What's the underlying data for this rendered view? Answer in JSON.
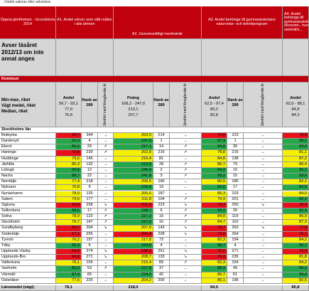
{
  "note": ". Värdet saknas eller sekretess",
  "headers": {
    "c0": "Öppna jämförelser - Grundskola 2014",
    "c1": "A1. Andel elever som nått målen i alla ämnen",
    "c2": "A2. Genomsnittligt meritvärde",
    "c3": "A3. Andel behöriga till gymnasieskolans naturvetar- och teknikprogram",
    "c4": "A4. Andel behöriga till gymnasieskolans ekonomi-, hum. samhälls..."
  },
  "subtitle": "Avser läsåret 2012/13 om inte annat anges",
  "kommun_label": "Kommun",
  "stats": {
    "labels": [
      "Min-max, riket",
      "Vägt medel, riket",
      "Median, riket"
    ],
    "a1": {
      "head": "Andel",
      "values": [
        "56,7 - 93,1",
        "77,0",
        "76,8"
      ],
      "rank_head": "Rank av",
      "rank_n": "289",
      "trend": "Jämfört med föregående år"
    },
    "a2": {
      "head": "Poäng",
      "values": [
        "168,2 - 247,0",
        "213,1",
        "207,7"
      ],
      "rank_head": "Rank av",
      "rank_n": "289",
      "trend": "Jämfört med föregående år"
    },
    "a3": {
      "head": "Andel",
      "values": [
        "62,5 - 97,4",
        "83,2",
        "82,8"
      ],
      "rank_head": "Rank av",
      "rank_n": "289",
      "trend": "Jämfört med föregående år"
    },
    "a4": {
      "head": "Andel",
      "values": [
        "62,0 - 98,1",
        "84,8",
        "84,3"
      ]
    }
  },
  "region_label": "Stockholms län",
  "rows": [
    {
      "name": "Botkyrka",
      "a1": "66,7",
      "a1c": "red",
      "r1": "244",
      "t1": "→",
      "a2": "203,0",
      "a2c": "yel",
      "r2": "214",
      "t2": "→",
      "a3": "76,6",
      "a3c": "red",
      "r3": "223",
      "t3": "→",
      "a4": "78,0",
      "a4c": "red"
    },
    {
      "name": "Danderyd",
      "a1": "92,4",
      "a1c": "grn",
      "r1": "4",
      "t1": "→",
      "a2": "247,0",
      "a2c": "grn",
      "r2": "1",
      "t2": "→",
      "a3": "97,4",
      "a3c": "grn",
      "r3": "1",
      "t3": "→",
      "a4": "98,1",
      "a4c": "grn"
    },
    {
      "name": "Ekerö",
      "a1": "86,6",
      "a1c": "grn",
      "r1": "29",
      "t1": "↗",
      "a2": "227,1",
      "a2c": "grn",
      "r2": "14",
      "t2": "↗",
      "a3": "90,8",
      "a3c": "grn",
      "r3": "30",
      "t3": "→",
      "a4": "93,4",
      "a4c": "grn"
    },
    {
      "name": "Haninge",
      "a1": "70,8",
      "a1c": "red",
      "r1": "239",
      "t1": "↗",
      "a2": "202,8",
      "a2c": "yel",
      "r2": "216",
      "t2": "↗",
      "a3": "78,8",
      "a3c": "yel",
      "r3": "216",
      "t3": "→",
      "a4": "81,1",
      "a4c": "yel"
    },
    {
      "name": "Huddinge",
      "a1": "79,6",
      "a1c": "yel",
      "r1": "145",
      "t1": "→",
      "a2": "216,4",
      "a2c": "yel",
      "r2": "81",
      "t2": "→",
      "a3": "84,8",
      "a3c": "yel",
      "r3": "138",
      "t3": "→",
      "a4": "87,2",
      "a4c": "yel"
    },
    {
      "name": "Järfälla",
      "a1": "80,3",
      "a1c": "yel",
      "r1": "132",
      "t1": "→",
      "a2": "223,8",
      "a2c": "grn",
      "r2": "28",
      "t2": "↗",
      "a3": "86,7",
      "a3c": "yel",
      "r3": "79",
      "t3": "→",
      "a4": "86,4",
      "a4c": "yel"
    },
    {
      "name": "Lidingö",
      "a1": "90,6",
      "a1c": "grn",
      "r1": "12",
      "t1": "→",
      "a2": "246,9",
      "a2c": "grn",
      "r2": "2",
      "t2": "↗",
      "a3": "94,2",
      "a3c": "grn",
      "r3": "10",
      "t3": "→",
      "a4": "95,1",
      "a4c": "grn"
    },
    {
      "name": "Nacka",
      "a1": "88,7",
      "a1c": "grn",
      "r1": "22",
      "t1": "→",
      "a2": "241,8",
      "a2c": "grn",
      "r2": "3",
      "t2": "↗",
      "a3": "93,2",
      "a3c": "grn",
      "r3": "15",
      "t3": "→",
      "a4": "93,6",
      "a4c": "grn"
    },
    {
      "name": "Norrtälje",
      "a1": "77,4",
      "a1c": "yel",
      "r1": "218",
      "t1": "→",
      "a2": "206,5",
      "a2c": "yel",
      "r2": "166",
      "t2": "→",
      "a3": "80,5",
      "a3c": "yel",
      "r3": "185",
      "t3": "→",
      "a4": "82,2",
      "a4c": "yel"
    },
    {
      "name": "Nykvarn",
      "a1": "76,8",
      "a1c": "yel",
      "r1": "9",
      "t1": "→",
      "a2": "226,8",
      "a2c": "grn",
      "r2": "19",
      "t2": "→",
      "a3": "92,6",
      "a3c": "grn",
      "r3": "17",
      "t3": "→",
      "a4": "92,6",
      "a4c": "grn"
    },
    {
      "name": "Nynäshamn",
      "a1": "78,0",
      "a1c": "yel",
      "r1": "125",
      "t1": "→",
      "a2": "205,6",
      "a2c": "yel",
      "r2": "187",
      "t2": "→",
      "a3": "85,3",
      "a3c": "yel",
      "r3": "103",
      "t3": "→",
      "a4": "84,0",
      "a4c": "yel"
    },
    {
      "name": "Salem",
      "a1": "74,6",
      "a1c": "yel",
      "r1": "177",
      "t1": "→",
      "a2": "211,8",
      "a2c": "yel",
      "r2": "104",
      "t2": "↗",
      "a3": "79,9",
      "a3c": "yel",
      "r3": "201",
      "t3": "→",
      "a4": "90,2",
      "a4c": "grn"
    },
    {
      "name": "Sigtuna",
      "a1": "64,0",
      "a1c": "red",
      "r1": "258",
      "t1": "↘",
      "a2": "201,9",
      "a2c": "red",
      "r2": "223",
      "t2": "↘",
      "a3": "72,7",
      "a3c": "red",
      "r3": "250",
      "t3": "↘",
      "a4": "76,4",
      "a4c": "red"
    },
    {
      "name": "Sollentuna",
      "a1": "88,5",
      "a1c": "grn",
      "r1": "17",
      "t1": "↗",
      "a2": "238,7",
      "a2c": "grn",
      "r2": "6",
      "t2": "↗",
      "a3": "92,2",
      "a3c": "grn",
      "r3": "20",
      "t3": "→",
      "a4": "92,4",
      "a4c": "grn"
    },
    {
      "name": "Solna",
      "a1": "78,9",
      "a1c": "yel",
      "r1": "123",
      "t1": "↗",
      "a2": "227,2",
      "a2c": "grn",
      "r2": "16",
      "t2": "↗",
      "a3": "84,8",
      "a3c": "yel",
      "r3": "119",
      "t3": "→",
      "a4": "86,9",
      "a4c": "yel"
    },
    {
      "name": "Stockholm",
      "a1": "76,7",
      "a1c": "yel",
      "r1": "147",
      "t1": "↗",
      "a2": "227,0",
      "a2c": "grn",
      "r2": "16",
      "t2": "↗",
      "a3": "84,7",
      "a3c": "yel",
      "r3": "110",
      "t3": "→",
      "a4": "87,3",
      "a4c": "yel"
    },
    {
      "name": "Sundbyberg",
      "a1": "66,7",
      "a1c": "red",
      "r1": "264",
      "t1": "↘",
      "a2": "207,8",
      "a2c": "yel",
      "r2": "143",
      "t2": "↘",
      "a3": "75,7",
      "a3c": "red",
      "r3": "263",
      "t3": "↘",
      "a4": "77,6",
      "a4c": "red"
    },
    {
      "name": "Södertälje",
      "a1": "67,1",
      "a1c": "red",
      "r1": "255",
      "t1": "→",
      "a2": "200,4",
      "a2c": "red",
      "r2": "228",
      "t2": "↘",
      "a3": "72,6",
      "a3c": "red",
      "r3": "264",
      "t3": "→",
      "a4": "75,1",
      "a4c": "red"
    },
    {
      "name": "Tyresö",
      "a1": "76,2",
      "a1c": "yel",
      "r1": "157",
      "t1": "→",
      "a2": "217,8",
      "a2c": "yel",
      "r2": "73",
      "t2": "→",
      "a3": "82,3",
      "a3c": "yel",
      "r3": "154",
      "t3": "→",
      "a4": "84,2",
      "a4c": "yel"
    },
    {
      "name": "Täby",
      "a1": "92,4",
      "a1c": "grn",
      "r1": "5",
      "t1": "→",
      "a2": "244,8",
      "a2c": "grn",
      "r2": "4",
      "t2": "→",
      "a3": "96,7",
      "a3c": "grn",
      "r3": "4",
      "t3": "→",
      "a4": "96,7",
      "a4c": "grn"
    },
    {
      "name": "Upplands Väsby",
      "a1": "69,0",
      "a1c": "red",
      "r1": "274",
      "t1": "↘",
      "a2": "198,0",
      "a2c": "red",
      "r2": "251",
      "t2": "↘",
      "a3": "72,6",
      "a3c": "red",
      "r3": "271",
      "t3": "→",
      "a4": "73,0",
      "a4c": "red"
    },
    {
      "name": "Upplands-Bro",
      "a1": "66,8",
      "a1c": "red",
      "r1": "271",
      "t1": "↘",
      "a2": "208,7",
      "a2c": "yel",
      "r2": "133",
      "t2": "↘",
      "a3": "76,0",
      "a3c": "red",
      "r3": "235",
      "t3": "→",
      "a4": "81,8",
      "a4c": "yel"
    },
    {
      "name": "Vallentuna",
      "a1": "78,1",
      "a1c": "yel",
      "r1": "159",
      "t1": "→",
      "a2": "215,4",
      "a2c": "yel",
      "r2": "89",
      "t2": "↗",
      "a3": "82,3",
      "a3c": "yel",
      "r3": "154",
      "t3": "→",
      "a4": "84,2",
      "a4c": "yel"
    },
    {
      "name": "Vaxholm",
      "a1": "83,3",
      "a1c": "grn",
      "r1": "53",
      "t1": "↗",
      "a2": "227,8",
      "a2c": "grn",
      "r2": "37",
      "t2": "→",
      "a3": "88,9",
      "a3c": "grn",
      "r3": "49",
      "t3": "→",
      "a4": "89,2",
      "a4c": "grn"
    },
    {
      "name": "Värmdö",
      "a1": "87,4",
      "a1c": "grn",
      "r1": "65",
      "t1": "→",
      "a2": "224,0",
      "a2c": "grn",
      "r2": "42",
      "t2": "→",
      "a3": "86,7",
      "a3c": "yel",
      "r3": "61",
      "t3": "→",
      "a4": "94,4",
      "a4c": "grn"
    },
    {
      "name": "Österåker",
      "a1": "77,6",
      "a1c": "yel",
      "r1": "225",
      "t1": "→",
      "a2": "204,2",
      "a2c": "yel",
      "r2": "200",
      "t2": "→",
      "a3": "80,1",
      "a3c": "yel",
      "r3": "196",
      "t3": "→",
      "a4": "82,5",
      "a4c": "yel"
    }
  ],
  "footer": {
    "label": "Länsmedel (vägt)",
    "a1": "78,1",
    "a2": "218,0",
    "a3": "84,5",
    "a4": "85,8"
  }
}
